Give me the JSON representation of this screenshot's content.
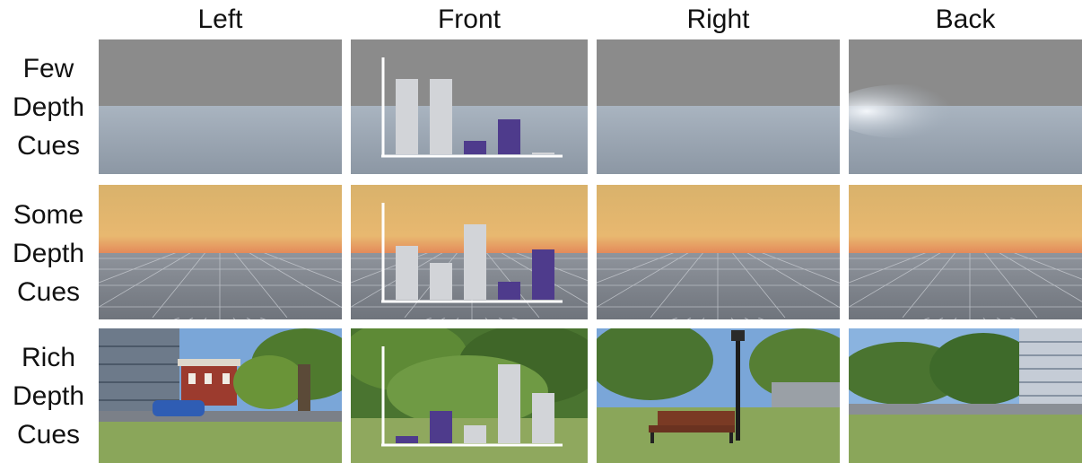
{
  "columns": [
    "Left",
    "Front",
    "Right",
    "Back"
  ],
  "rows": [
    {
      "label_lines": [
        "Few",
        "Depth",
        "Cues"
      ],
      "scene": "few"
    },
    {
      "label_lines": [
        "Some",
        "Depth",
        "Cues"
      ],
      "scene": "some"
    },
    {
      "label_lines": [
        "Rich",
        "Depth",
        "Cues"
      ],
      "scene": "rich"
    }
  ],
  "colors": {
    "bar_light": "#d2d4d8",
    "bar_purple": "#4e3b8c",
    "sky_gray": "#8a8a8a",
    "ground_blue": "#a8b3bf",
    "sunset_top": "#e8c27c",
    "sunset_horizon": "#e49460",
    "grass": "#8ea85a",
    "sky_blue": "#6f9fd8"
  },
  "charts": [
    {
      "row": "few",
      "type": "bar",
      "values": [
        0.84,
        0.84,
        0.15,
        0.39,
        0.02
      ],
      "bar_colors": [
        "light",
        "light",
        "purple",
        "purple",
        "light"
      ]
    },
    {
      "row": "some",
      "type": "bar",
      "values": [
        0.6,
        0.41,
        0.84,
        0.2,
        0.56
      ],
      "bar_colors": [
        "light",
        "light",
        "light",
        "purple",
        "purple"
      ]
    },
    {
      "row": "rich",
      "type": "bar",
      "values": [
        0.08,
        0.36,
        0.2,
        0.88,
        0.56
      ],
      "bar_colors": [
        "purple",
        "purple",
        "light",
        "light",
        "light"
      ]
    }
  ]
}
